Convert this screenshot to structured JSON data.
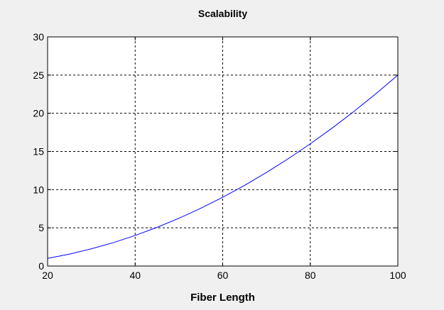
{
  "chart_data": {
    "type": "line",
    "title": "Scalability",
    "xlabel": "Fiber Length",
    "ylabel": "",
    "xlim": [
      20,
      100
    ],
    "ylim": [
      0,
      30
    ],
    "xticks": [
      20,
      40,
      60,
      80,
      100
    ],
    "yticks": [
      0,
      5,
      10,
      15,
      20,
      25,
      30
    ],
    "grid": true,
    "series": [
      {
        "color": "#0000ff",
        "x": [
          20,
          25,
          30,
          35,
          40,
          45,
          50,
          55,
          60,
          65,
          70,
          75,
          80,
          85,
          90,
          95,
          100
        ],
        "y": [
          1.0,
          1.56,
          2.25,
          3.06,
          4.0,
          5.06,
          6.25,
          7.56,
          9.0,
          10.56,
          12.25,
          14.06,
          16.0,
          18.06,
          20.25,
          22.56,
          25.0
        ]
      }
    ]
  },
  "colors": {
    "background": "#f0f0f0",
    "plot_area": "#ffffff",
    "axis": "#000000"
  }
}
